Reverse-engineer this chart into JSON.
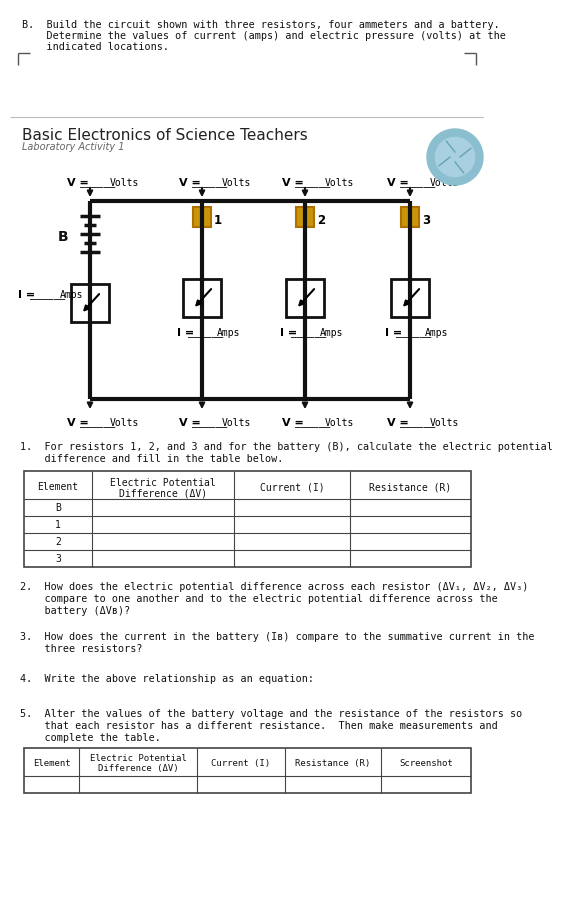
{
  "bg_color": "#ffffff",
  "page_bg": "#f5f5f5",
  "line1": "B.  Build the circuit shown with three resistors, four ammeters and a battery.",
  "line2": "    Determine the values of current (amps) and electric pressure (volts) at the",
  "line3": "    indicated locations.",
  "section_title": "Basic Electronics of Science Teachers",
  "section_subtitle": "Laboratory Activity 1",
  "q1_text1": "1.  For resistors 1, 2, and 3 and for the battery (B), calculate the electric potential",
  "q1_text2": "    difference and fill in the table below.",
  "q2_text1": "2.  How does the electric potential difference across each resistor (ΔV₁, ΔV₂, ΔV₃)",
  "q2_text2": "    compare to one another and to the electric potential difference across the",
  "q2_text3": "    battery (ΔVʙ)?",
  "q3_text1": "3.  How does the current in the battery (Iʙ) compare to the summative current in the",
  "q3_text2": "    three resistors?",
  "q4_text": "4.  Write the above relationship as an equation:",
  "q5_text1": "5.  Alter the values of the battery voltage and the resistance of the resistors so",
  "q5_text2": "    that each resistor has a different resistance.  Then make measurements and",
  "q5_text3": "    complete the table.",
  "table1_col_headers": [
    "Element",
    "Electric Potential\nDifference (ΔV)",
    "Current (I)",
    "Resistance (R)"
  ],
  "table1_rows": [
    "B",
    "1",
    "2",
    "3"
  ],
  "table2_col_headers": [
    "Element",
    "Electric Potential\nDifference (ΔV)",
    "Current (I)",
    "Resistance (R)",
    "Screenshot"
  ],
  "resistor_fill": "#c8960c",
  "resistor_edge": "#b07000",
  "wire_color": "#111111",
  "wire_lw": 3.0,
  "corner_bracket_color": "#555555"
}
